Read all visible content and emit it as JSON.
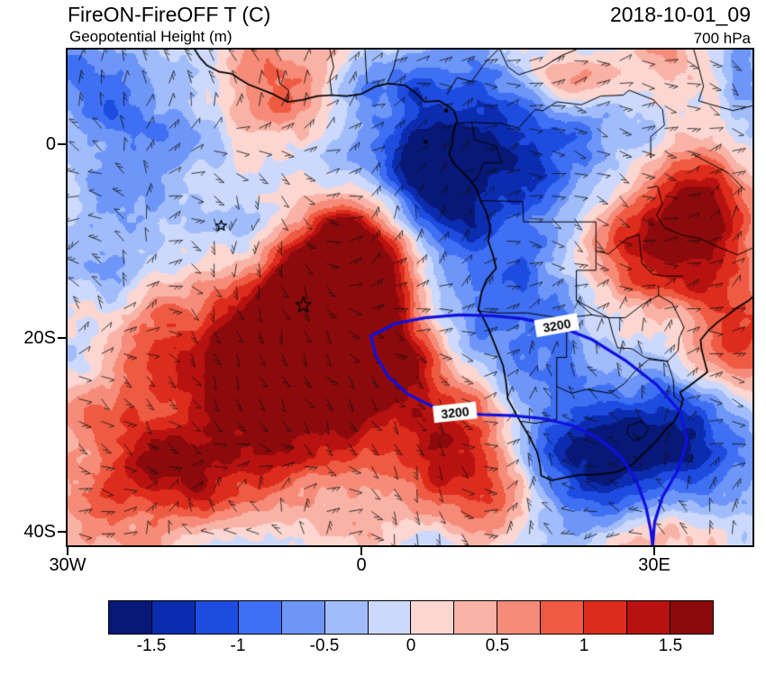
{
  "header": {
    "title": "FireON-FireOFF T (C)",
    "subtitle": "Geopotential Height (m)",
    "datetime": "2018-10-01_09",
    "level": "700 hPa"
  },
  "axes": {
    "y_ticks": [
      {
        "label": "0",
        "lat": 0
      },
      {
        "label": "20S",
        "lat": -20
      },
      {
        "label": "40S",
        "lat": -40
      }
    ],
    "x_ticks": [
      {
        "label": "30W",
        "lon": -30
      },
      {
        "label": "0",
        "lon": 0
      },
      {
        "label": "30E",
        "lon": 30
      }
    ]
  },
  "colorbar": {
    "tick_labels": [
      "-1.5",
      "-1",
      "-0.5",
      "0",
      "0.5",
      "1",
      "1.5"
    ],
    "colors": [
      "#081878",
      "#0c2cb0",
      "#1e4ce0",
      "#3f6ff2",
      "#6e96f8",
      "#a0bcfa",
      "#ccd9fc",
      "#fcd7d2",
      "#f9b2a6",
      "#f58b78",
      "#ef5a42",
      "#de2c1c",
      "#b81210",
      "#8c0a0c"
    ]
  },
  "chart_data": {
    "type": "heatmap",
    "title": "FireON-FireOFF T (C)",
    "overlay_field": "Geopotential Height (m)",
    "valid_time": "2018-10-01_09",
    "pressure_level": "700 hPa",
    "units": "C",
    "lon_range": [
      -30,
      40
    ],
    "lat_range": [
      9.8,
      -41.4
    ],
    "xtick_labels": [
      "30W",
      "0",
      "30E"
    ],
    "ytick_labels": [
      "0",
      "20S",
      "40S"
    ],
    "levels": [
      -1.75,
      -1.5,
      -1.25,
      -1,
      -0.75,
      -0.5,
      -0.25,
      0,
      0.25,
      0.5,
      0.75,
      1,
      1.25,
      1.5,
      1.75
    ],
    "palette": [
      "#081878",
      "#0c2cb0",
      "#1e4ce0",
      "#3f6ff2",
      "#6e96f8",
      "#a0bcfa",
      "#ccd9fc",
      "#fcd7d2",
      "#f9b2a6",
      "#f58b78",
      "#ef5a42",
      "#de2c1c",
      "#b81210",
      "#8c0a0c"
    ],
    "noise": {
      "seed": 7,
      "aspect": 1.38,
      "amplitude": 0.95,
      "octaves": [
        [
          5,
          1.0
        ],
        [
          11,
          0.6
        ],
        [
          23,
          0.35
        ],
        [
          47,
          0.22
        ]
      ]
    },
    "anomaly_blobs": [
      [
        0.37,
        0.5,
        0.1,
        0.13,
        1.9
      ],
      [
        0.31,
        0.64,
        0.12,
        0.11,
        1.5
      ],
      [
        0.24,
        0.79,
        0.13,
        0.09,
        1.2
      ],
      [
        0.43,
        0.4,
        0.08,
        0.08,
        1.3
      ],
      [
        0.47,
        0.61,
        0.08,
        0.1,
        1.1
      ],
      [
        0.13,
        0.89,
        0.1,
        0.07,
        0.9
      ],
      [
        0.57,
        0.82,
        0.06,
        0.09,
        1.0
      ],
      [
        0.63,
        0.9,
        0.06,
        0.08,
        1.0
      ],
      [
        0.85,
        0.38,
        0.08,
        0.1,
        1.5
      ],
      [
        0.93,
        0.29,
        0.06,
        0.08,
        1.1
      ],
      [
        0.97,
        0.55,
        0.05,
        0.12,
        0.9
      ],
      [
        0.33,
        0.1,
        0.06,
        0.05,
        0.7
      ],
      [
        0.75,
        0.06,
        0.05,
        0.04,
        0.7
      ],
      [
        0.6,
        0.22,
        0.12,
        0.12,
        -1.3
      ],
      [
        0.55,
        0.43,
        0.06,
        0.15,
        -1.1
      ],
      [
        0.52,
        0.28,
        0.06,
        0.08,
        -0.8
      ],
      [
        0.68,
        0.55,
        0.08,
        0.1,
        -0.9
      ],
      [
        0.75,
        0.82,
        0.1,
        0.09,
        -1.4
      ],
      [
        0.9,
        0.76,
        0.08,
        0.08,
        -0.9
      ],
      [
        0.07,
        0.1,
        0.08,
        0.08,
        -0.9
      ],
      [
        0.12,
        0.36,
        0.08,
        0.11,
        -0.7
      ],
      [
        0.46,
        0.06,
        0.05,
        0.05,
        -0.7
      ],
      [
        0.3,
        0.33,
        0.08,
        0.09,
        -0.5
      ]
    ],
    "wind_barbs": {
      "step": 25,
      "length": 15,
      "color": "#101010"
    },
    "contour": {
      "value": 3200,
      "label": "3200",
      "color": "#1010dd",
      "label_points": [
        {
          "lon": 9.6,
          "lat": -27.7,
          "angle_deg": -6
        },
        {
          "lon": 20.0,
          "lat": -18.7,
          "angle_deg": -10
        }
      ],
      "paths": [
        [
          [
            1.0,
            -19.8
          ],
          [
            3.5,
            -18.5
          ],
          [
            6.5,
            -17.9
          ],
          [
            10,
            -17.6
          ],
          [
            13.5,
            -17.7
          ],
          [
            16.5,
            -18.0
          ],
          [
            20,
            -18.7
          ],
          [
            23.5,
            -20.1
          ],
          [
            27,
            -22.3
          ],
          [
            30.2,
            -24.8
          ],
          [
            32.6,
            -27.6
          ],
          [
            33.3,
            -30.6
          ],
          [
            32.4,
            -33.6
          ],
          [
            30.8,
            -36.4
          ],
          [
            30.0,
            -39.0
          ],
          [
            29.8,
            -41.4
          ]
        ],
        [
          [
            1.0,
            -19.8
          ],
          [
            1.5,
            -21.8
          ],
          [
            2.8,
            -24.0
          ],
          [
            4.8,
            -25.8
          ],
          [
            7.2,
            -27.0
          ],
          [
            9.6,
            -27.7
          ],
          [
            12.5,
            -27.9
          ],
          [
            15.5,
            -28.0
          ],
          [
            18.5,
            -28.3
          ],
          [
            21.5,
            -29.0
          ],
          [
            24.2,
            -30.3
          ],
          [
            26.5,
            -32.2
          ],
          [
            28.1,
            -34.6
          ],
          [
            29.1,
            -37.4
          ],
          [
            29.6,
            -39.8
          ],
          [
            29.8,
            -41.4
          ]
        ]
      ]
    },
    "markers": [
      {
        "type": "star",
        "lon": -14.3,
        "lat": -8.4,
        "size": 6
      },
      {
        "type": "star",
        "lon": -5.9,
        "lat": -16.6,
        "size": 9
      }
    ],
    "islands": [
      [
        6.6,
        0.3
      ],
      [
        8.7,
        3.5
      ]
    ],
    "coastline": [
      [
        -17,
        9.8
      ],
      [
        -16.5,
        9.0
      ],
      [
        -15.8,
        8.2
      ],
      [
        -14.5,
        7.5
      ],
      [
        -13.2,
        7.3
      ],
      [
        -12.5,
        6.8
      ],
      [
        -11.5,
        6.2
      ],
      [
        -10.5,
        5.8
      ],
      [
        -9,
        5.2
      ],
      [
        -7.5,
        4.4
      ],
      [
        -6,
        4.6
      ],
      [
        -4.5,
        5.0
      ],
      [
        -3,
        5.1
      ],
      [
        -1.5,
        5.0
      ],
      [
        0,
        5.2
      ],
      [
        1.5,
        6.0
      ],
      [
        2.8,
        6.3
      ],
      [
        4.5,
        6.1
      ],
      [
        5.5,
        5.4
      ],
      [
        6.5,
        4.4
      ],
      [
        8,
        4.5
      ],
      [
        8.8,
        4.0
      ],
      [
        9.5,
        3.5
      ],
      [
        9.8,
        2.5
      ],
      [
        9.4,
        1.2
      ],
      [
        9.3,
        0
      ],
      [
        9.0,
        -1.0
      ],
      [
        9.5,
        -2.0
      ],
      [
        11,
        -3.5
      ],
      [
        11.8,
        -4.6
      ],
      [
        12.2,
        -5.8
      ],
      [
        12.8,
        -7.0
      ],
      [
        13.2,
        -8.5
      ],
      [
        13.0,
        -10.0
      ],
      [
        13.5,
        -11.5
      ],
      [
        13.8,
        -12.8
      ],
      [
        12.8,
        -14.0
      ],
      [
        12.3,
        -15.3
      ],
      [
        12.0,
        -17.0
      ],
      [
        13.0,
        -19.0
      ],
      [
        13.8,
        -21.0
      ],
      [
        14.5,
        -22.8
      ],
      [
        14.8,
        -24.5
      ],
      [
        15.0,
        -26.3
      ],
      [
        16.2,
        -28.5
      ],
      [
        17.2,
        -30.2
      ],
      [
        18.0,
        -31.8
      ],
      [
        18.3,
        -33.2
      ],
      [
        18.4,
        -34.2
      ],
      [
        19.5,
        -34.7
      ],
      [
        20.8,
        -34.4
      ],
      [
        22.5,
        -34.1
      ],
      [
        24.0,
        -34.1
      ],
      [
        25.7,
        -33.9
      ],
      [
        26.5,
        -33.7
      ],
      [
        27.8,
        -33.0
      ],
      [
        29.0,
        -31.8
      ],
      [
        30.2,
        -30.6
      ],
      [
        31.1,
        -29.5
      ],
      [
        32.0,
        -28.6
      ],
      [
        32.6,
        -27.4
      ],
      [
        32.9,
        -26.3
      ],
      [
        32.6,
        -25.6
      ],
      [
        33.2,
        -25.2
      ],
      [
        34.5,
        -24.2
      ],
      [
        35.4,
        -23.5
      ],
      [
        35.1,
        -22.4
      ],
      [
        34.8,
        -21.2
      ],
      [
        34.7,
        -20.2
      ],
      [
        35.5,
        -19.2
      ],
      [
        36.5,
        -18.3
      ],
      [
        37.5,
        -17.6
      ],
      [
        38.5,
        -16.8
      ],
      [
        39.5,
        -16.2
      ],
      [
        40.0,
        -15.8
      ]
    ],
    "borders": [
      [
        [
          11.9,
          -17.2
        ],
        [
          14,
          -17.4
        ],
        [
          17,
          -17.4
        ],
        [
          19.5,
          -17.8
        ],
        [
          21,
          -17.9
        ],
        [
          23.6,
          -17.6
        ],
        [
          25.3,
          -17.9
        ]
      ],
      [
        [
          21,
          -17.9
        ],
        [
          21,
          -22
        ],
        [
          20,
          -22
        ],
        [
          20,
          -28.4
        ],
        [
          17.8,
          -28.8
        ],
        [
          16.4,
          -28.6
        ]
      ],
      [
        [
          12.2,
          -5.8
        ],
        [
          16.5,
          -5.9
        ],
        [
          16.6,
          -8.0
        ],
        [
          21.8,
          -8.0
        ],
        [
          24.0,
          -8.0
        ],
        [
          24.0,
          -11.0
        ],
        [
          24.0,
          -13.0
        ],
        [
          22.0,
          -13.0
        ],
        [
          22.0,
          -16.1
        ],
        [
          23.6,
          -17.6
        ]
      ],
      [
        [
          24,
          -11
        ],
        [
          25.3,
          -11.3
        ],
        [
          27.2,
          -9.7
        ],
        [
          28.4,
          -9.3
        ],
        [
          28.7,
          -12.3
        ],
        [
          29.8,
          -13.4
        ],
        [
          31,
          -13.6
        ],
        [
          32.9,
          -13.6
        ]
      ],
      [
        [
          22.0,
          -16.1
        ],
        [
          25.3,
          -17.9
        ],
        [
          27,
          -17.9
        ],
        [
          28.8,
          -16.5
        ],
        [
          30.4,
          -15.6
        ],
        [
          30.4,
          -14.6
        ]
      ],
      [
        [
          25.3,
          -17.9
        ],
        [
          25.7,
          -19.5
        ],
        [
          26.2,
          -21
        ],
        [
          27.7,
          -21.1
        ],
        [
          29,
          -22
        ],
        [
          31.3,
          -22.4
        ]
      ],
      [
        [
          20,
          -25
        ],
        [
          21.5,
          -25.7
        ],
        [
          23,
          -25.3
        ],
        [
          25.5,
          -25.7
        ],
        [
          26.9,
          -24.7
        ],
        [
          28.2,
          -23.2
        ],
        [
          29.4,
          -22.2
        ],
        [
          31.3,
          -22.4
        ]
      ],
      [
        [
          31.3,
          -22.4
        ],
        [
          32.4,
          -21.3
        ],
        [
          32.5,
          -20.0
        ],
        [
          33.0,
          -18.9
        ],
        [
          31.8,
          -16.4
        ],
        [
          30.4,
          -15.6
        ]
      ],
      [
        [
          31.3,
          -22.4
        ],
        [
          31.9,
          -24.3
        ],
        [
          32.0,
          -26.0
        ],
        [
          32.9,
          -26.8
        ]
      ],
      [
        [
          27.3,
          -29.1
        ],
        [
          28.6,
          -28.6
        ],
        [
          29.4,
          -29.3
        ],
        [
          28.9,
          -30.2
        ],
        [
          27.9,
          -30.6
        ],
        [
          27.2,
          -29.9
        ],
        [
          27.3,
          -29.1
        ]
      ],
      [
        [
          29.3,
          -4.5
        ],
        [
          30.3,
          -4.3
        ],
        [
          30.8,
          -6.2
        ],
        [
          30.2,
          -7.3
        ],
        [
          31.0,
          -8.6
        ],
        [
          32.9,
          -9.4
        ],
        [
          34.6,
          -9.7
        ],
        [
          36.5,
          -10.6
        ],
        [
          38.5,
          -11.4
        ],
        [
          40.0,
          -10.7
        ]
      ],
      [
        [
          33.9,
          -1.0
        ],
        [
          37.6,
          -3.0
        ],
        [
          39.2,
          -4.7
        ]
      ],
      [
        [
          29.6,
          -1.4
        ],
        [
          29.6,
          0.8
        ],
        [
          31.0,
          2.0
        ],
        [
          30.8,
          3.6
        ],
        [
          29.9,
          4.6
        ]
      ],
      [
        [
          18.6,
          3.5
        ],
        [
          20,
          4.4
        ],
        [
          22.5,
          4.1
        ],
        [
          24.5,
          5.0
        ],
        [
          26.8,
          5.1
        ],
        [
          27.4,
          5.6
        ],
        [
          29.9,
          4.6
        ]
      ],
      [
        [
          8.8,
          5.2
        ],
        [
          9.8,
          6.9
        ],
        [
          11.3,
          6.5
        ],
        [
          12.8,
          8.6
        ],
        [
          14.0,
          9.8
        ]
      ],
      [
        [
          9.8,
          2.2
        ],
        [
          11.3,
          2.3
        ],
        [
          13,
          2.2
        ],
        [
          14.2,
          2.2
        ],
        [
          16.1,
          1.7
        ],
        [
          17.8,
          3.6
        ],
        [
          18.6,
          3.5
        ]
      ],
      [
        [
          11.3,
          2.3
        ],
        [
          11.6,
          0.5
        ],
        [
          13.8,
          -0.2
        ],
        [
          14.4,
          -1.9
        ],
        [
          12.5,
          -1.9
        ],
        [
          11.8,
          -3.6
        ],
        [
          11.2,
          -3.9
        ]
      ],
      [
        [
          -8.6,
          7.7
        ],
        [
          -8.3,
          6.3
        ],
        [
          -7.4,
          5.6
        ],
        [
          -7.5,
          4.4
        ]
      ],
      [
        [
          -3.2,
          9.8
        ],
        [
          -2.8,
          8.0
        ],
        [
          -3.2,
          6.8
        ],
        [
          -3.0,
          5.1
        ]
      ],
      [
        [
          0.4,
          9.8
        ],
        [
          0.5,
          8.0
        ],
        [
          0.6,
          6.3
        ]
      ],
      [
        [
          3.8,
          9.8
        ],
        [
          3.3,
          7.8
        ],
        [
          2.7,
          6.4
        ]
      ],
      [
        [
          14.2,
          9.8
        ],
        [
          15.0,
          8.0
        ],
        [
          16.1,
          7.2
        ],
        [
          18.6,
          8.0
        ],
        [
          20.5,
          9.2
        ],
        [
          22.0,
          9.8
        ]
      ],
      [
        [
          34.0,
          9.8
        ],
        [
          34.5,
          8.0
        ],
        [
          35.0,
          6.0
        ],
        [
          34.5,
          4.5
        ],
        [
          35.5,
          4.2
        ],
        [
          38.0,
          3.5
        ],
        [
          40.0,
          4.0
        ]
      ]
    ]
  }
}
